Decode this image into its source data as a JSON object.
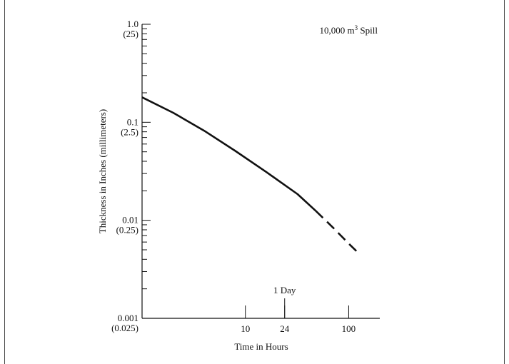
{
  "chart_data": {
    "type": "line",
    "annotation": {
      "prefix": "10,000 m",
      "sup": "3",
      "suffix": " Spill"
    },
    "xlabel": "Time in Hours",
    "ylabel": "Thickness in Inches (millimeters)",
    "x_scale": "log",
    "y_scale": "log",
    "xlim": [
      1,
      200
    ],
    "ylim": [
      0.001,
      1.0
    ],
    "x_ticks": [
      {
        "value": 10,
        "label": "10"
      },
      {
        "value": 24,
        "label": "24"
      },
      {
        "value": 100,
        "label": "100"
      }
    ],
    "x_marker": {
      "value": 24,
      "label": "1 Day"
    },
    "y_ticks": [
      {
        "value": 1.0,
        "label": "1.0",
        "sublabel": "(25)"
      },
      {
        "value": 0.1,
        "label": "0.1",
        "sublabel": "(2.5)"
      },
      {
        "value": 0.01,
        "label": "0.01",
        "sublabel": "(0.25)"
      },
      {
        "value": 0.001,
        "label": "0.001",
        "sublabel": "(0.025)"
      }
    ],
    "series": [
      {
        "style": "solid",
        "x": [
          1,
          2,
          4,
          8,
          16,
          32,
          48
        ],
        "y": [
          0.18,
          0.125,
          0.082,
          0.051,
          0.031,
          0.0185,
          0.0125
        ]
      },
      {
        "style": "dashed",
        "x": [
          48,
          70,
          100,
          120
        ],
        "y": [
          0.0125,
          0.0085,
          0.0058,
          0.0048
        ]
      }
    ]
  }
}
